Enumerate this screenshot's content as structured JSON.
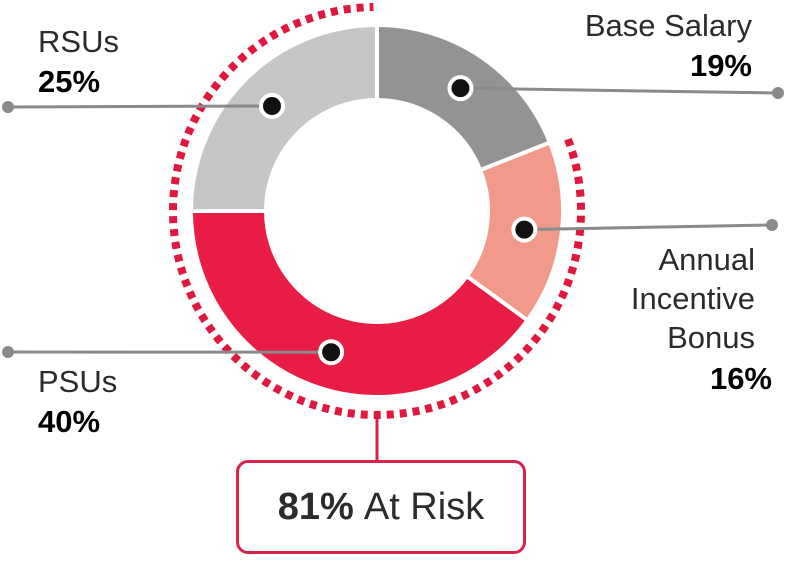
{
  "chart_data": {
    "type": "pie",
    "title": "",
    "donut": true,
    "slices": [
      {
        "label": "Base Salary",
        "value": 19,
        "display": "19%",
        "color": "#939393",
        "at_risk": false
      },
      {
        "label": "Annual Incentive Bonus",
        "display": "16%",
        "value": 16,
        "color": "#f29a8a",
        "at_risk": true
      },
      {
        "label": "PSUs",
        "value": 40,
        "display": "40%",
        "color": "#e81c44",
        "at_risk": true
      },
      {
        "label": "RSUs",
        "value": 25,
        "display": "25%",
        "color": "#c6c6c8",
        "at_risk": true
      }
    ],
    "label_lines": {
      "base_salary": [
        "Base Salary"
      ],
      "annual_incentive_bonus": [
        "Annual",
        "Incentive",
        "Bonus"
      ],
      "psus": [
        "PSUs"
      ],
      "rsus": [
        "RSUs"
      ]
    },
    "at_risk": {
      "percent": "81%",
      "text": "At Risk"
    },
    "colors": {
      "accent": "#e0173f",
      "text": "#2b2b2b",
      "leader": "#8a8a8a",
      "border": "#d8234a"
    }
  }
}
